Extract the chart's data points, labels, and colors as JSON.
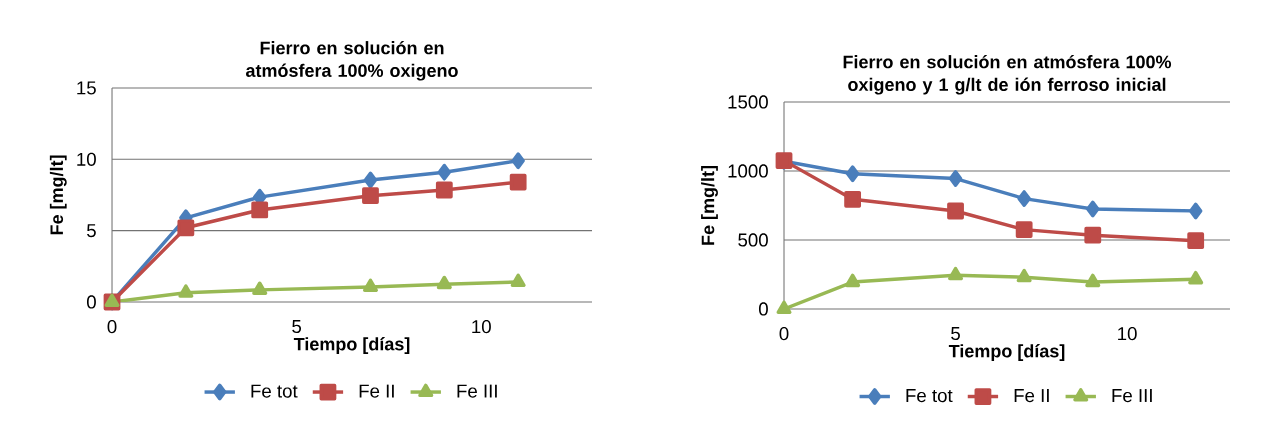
{
  "chart_data": [
    {
      "type": "line",
      "title": "Fierro en solución en atmósfera 100% oxigeno",
      "xlabel": "Tiempo [días]",
      "ylabel": "Fe [mg/lt]",
      "x": [
        0,
        2,
        4,
        7,
        9,
        11
      ],
      "series": [
        {
          "name": "Fe tot",
          "color": "#4a7ebb",
          "marker": "diamond",
          "values": [
            0,
            5.9,
            7.35,
            8.55,
            9.1,
            9.9
          ]
        },
        {
          "name": "Fe II",
          "color": "#be4b48",
          "marker": "square",
          "values": [
            0,
            5.2,
            6.45,
            7.45,
            7.85,
            8.4
          ]
        },
        {
          "name": "Fe III",
          "color": "#98b954",
          "marker": "triangle",
          "values": [
            0,
            0.65,
            0.85,
            1.05,
            1.25,
            1.4
          ]
        }
      ],
      "xlim": [
        0,
        13
      ],
      "xticks": [
        0,
        5,
        10
      ],
      "ylim": [
        0,
        15
      ],
      "yticks": [
        0,
        5,
        10,
        15
      ],
      "grid": "y",
      "legend": "bottom",
      "line_style": "solid"
    },
    {
      "type": "line",
      "title": "Fierro en solución en atmósfera 100% oxigeno y 1 g/lt de ión ferroso inicial",
      "xlabel": "Tiempo [días]",
      "ylabel": "Fe [mg/lt]",
      "x": [
        0,
        2,
        5,
        7,
        9,
        12
      ],
      "series": [
        {
          "name": "Fe tot",
          "color": "#4a7ebb",
          "marker": "diamond",
          "values": [
            1070,
            980,
            945,
            800,
            725,
            710
          ]
        },
        {
          "name": "Fe II",
          "color": "#be4b48",
          "marker": "square",
          "values": [
            1075,
            795,
            710,
            575,
            535,
            495
          ]
        },
        {
          "name": "Fe III",
          "color": "#98b954",
          "marker": "triangle",
          "values": [
            0,
            195,
            245,
            230,
            195,
            215
          ]
        }
      ],
      "xlim": [
        0,
        13
      ],
      "xticks": [
        0,
        5,
        10
      ],
      "ylim": [
        0,
        1500
      ],
      "yticks": [
        0,
        500,
        1000,
        1500
      ],
      "grid": "y",
      "legend": "bottom",
      "line_style": "solid"
    }
  ]
}
